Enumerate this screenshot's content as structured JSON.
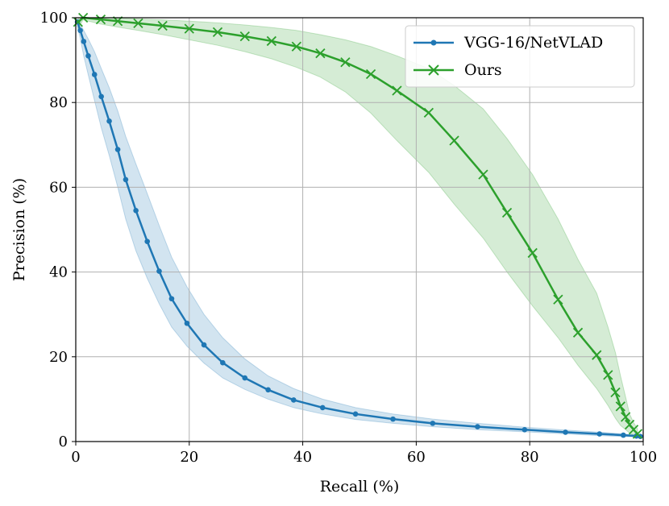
{
  "chart_data": {
    "type": "line",
    "title": "",
    "xlabel": "Recall (%)",
    "ylabel": "Precision (%)",
    "xlim": [
      0,
      100
    ],
    "ylim": [
      0,
      100
    ],
    "xticks": [
      "0",
      "20",
      "40",
      "60",
      "80",
      "100"
    ],
    "yticks": [
      "0",
      "20",
      "40",
      "60",
      "80",
      "100"
    ],
    "grid": true,
    "legend_position": "top-right",
    "series": [
      {
        "name": "VGG-16/NetVLAD",
        "color": "#1f77b4",
        "marker": "dot",
        "x": [
          0.3,
          0.8,
          1.4,
          2.2,
          3.3,
          4.5,
          5.9,
          7.4,
          8.8,
          10.6,
          12.6,
          14.7,
          16.9,
          19.6,
          22.6,
          25.9,
          29.8,
          33.9,
          38.4,
          43.5,
          49.3,
          55.9,
          62.9,
          70.8,
          79.1,
          86.3,
          92.3,
          96.5,
          98.8,
          99.5
        ],
        "y": [
          99.0,
          97.0,
          94.4,
          91.0,
          86.6,
          81.4,
          75.6,
          68.9,
          61.8,
          54.5,
          47.2,
          40.2,
          33.7,
          27.9,
          22.8,
          18.6,
          15.0,
          12.2,
          9.8,
          8.0,
          6.5,
          5.3,
          4.3,
          3.5,
          2.8,
          2.2,
          1.8,
          1.5,
          1.3,
          1.2
        ],
        "band_upper": [
          99.5,
          98.5,
          97.0,
          95.0,
          92.0,
          88.0,
          83.5,
          78.0,
          72.0,
          65.5,
          58.5,
          51.0,
          43.5,
          36.5,
          30.0,
          24.5,
          19.5,
          15.5,
          12.5,
          10.0,
          8.0,
          6.5,
          5.3,
          4.3,
          3.4,
          2.7,
          2.2,
          1.8,
          1.5,
          1.4
        ],
        "band_lower": [
          98.0,
          95.0,
          91.0,
          86.5,
          80.5,
          74.0,
          67.5,
          60.0,
          52.5,
          45.0,
          38.5,
          32.5,
          27.0,
          22.5,
          18.5,
          15.0,
          12.3,
          10.0,
          8.0,
          6.5,
          5.2,
          4.3,
          3.5,
          2.8,
          2.3,
          1.8,
          1.4,
          1.2,
          1.1,
          1.0
        ]
      },
      {
        "name": "Ours",
        "color": "#2ca02c",
        "marker": "x",
        "x": [
          0.4,
          1.3,
          4.4,
          7.4,
          11.0,
          15.3,
          20.0,
          25.0,
          29.8,
          34.5,
          38.9,
          43.1,
          47.5,
          52.0,
          56.6,
          62.2,
          66.7,
          71.8,
          76.0,
          80.5,
          85.0,
          88.5,
          91.8,
          93.8,
          95.1,
          96.0,
          96.9,
          97.6,
          98.3,
          99.0
        ],
        "y": [
          99.0,
          100.0,
          99.6,
          99.2,
          98.7,
          98.1,
          97.4,
          96.6,
          95.6,
          94.5,
          93.2,
          91.6,
          89.5,
          86.7,
          82.8,
          77.6,
          71.0,
          63.0,
          54.0,
          44.5,
          33.5,
          25.7,
          20.4,
          15.7,
          11.6,
          8.3,
          5.8,
          4.0,
          2.8,
          1.8
        ],
        "band_upper": [
          100.0,
          100.0,
          100.0,
          99.9,
          99.7,
          99.5,
          99.2,
          98.8,
          98.3,
          97.7,
          97.0,
          96.0,
          94.8,
          93.2,
          91.0,
          88.0,
          84.0,
          78.5,
          71.5,
          63.0,
          52.5,
          43.0,
          35.0,
          27.0,
          21.0,
          15.5,
          10.5,
          6.5,
          4.5,
          3.0
        ],
        "band_lower": [
          97.5,
          99.5,
          98.5,
          97.8,
          97.0,
          96.0,
          94.8,
          93.5,
          92.0,
          90.3,
          88.3,
          86.0,
          82.5,
          77.5,
          71.0,
          63.5,
          56.0,
          48.0,
          40.0,
          32.0,
          24.5,
          18.0,
          12.5,
          8.5,
          5.5,
          3.8,
          2.8,
          2.0,
          1.5,
          1.2
        ]
      }
    ]
  }
}
